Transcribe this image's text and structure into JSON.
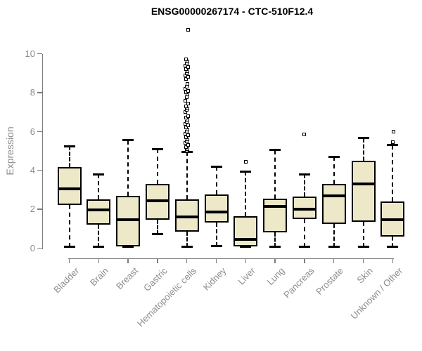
{
  "chart_data": {
    "type": "boxplot",
    "title": "ENSG00000267174 - CTC-510F12.4",
    "ylabel": "Expression",
    "xlabel": "",
    "ylim": [
      0,
      10
    ],
    "yticks": [
      0,
      2,
      4,
      6,
      8,
      10
    ],
    "grid": false,
    "legend": false,
    "categories": [
      "Bladder",
      "Brain",
      "Breast",
      "Gastric",
      "Hematopoietic cells",
      "Kidney",
      "Liver",
      "Lung",
      "Pancreas",
      "Prostate",
      "Skin",
      "Unknown / Other"
    ],
    "boxes": [
      {
        "category": "Bladder",
        "whisker_low": 0.05,
        "q1": 2.2,
        "median": 3.05,
        "q3": 4.15,
        "whisker_high": 5.25,
        "outliers": []
      },
      {
        "category": "Brain",
        "whisker_low": 0.05,
        "q1": 1.2,
        "median": 1.95,
        "q3": 2.5,
        "whisker_high": 3.8,
        "outliers": []
      },
      {
        "category": "Breast",
        "whisker_low": 0.05,
        "q1": 0.1,
        "median": 1.45,
        "q3": 2.7,
        "whisker_high": 5.55,
        "outliers": []
      },
      {
        "category": "Gastric",
        "whisker_low": 0.7,
        "q1": 1.45,
        "median": 2.45,
        "q3": 3.3,
        "whisker_high": 5.1,
        "outliers": []
      },
      {
        "category": "Hematopoietic cells",
        "whisker_low": 0.05,
        "q1": 0.85,
        "median": 1.6,
        "q3": 2.5,
        "whisker_high": 4.95,
        "outliers": [
          5.0,
          5.1,
          5.2,
          5.3,
          5.4,
          5.5,
          5.6,
          5.7,
          5.8,
          5.9,
          6.0,
          6.1,
          6.2,
          6.3,
          6.4,
          6.5,
          6.6,
          6.7,
          6.8,
          7.0,
          7.1,
          7.2,
          7.3,
          7.45,
          7.6,
          7.75,
          7.9,
          8.0,
          8.1,
          8.2,
          8.3,
          8.45,
          8.7,
          8.8,
          8.9,
          9.0,
          9.1,
          9.2,
          9.3,
          9.4,
          9.5,
          9.6,
          9.7,
          11.25
        ]
      },
      {
        "category": "Kidney",
        "whisker_low": 0.1,
        "q1": 1.3,
        "median": 1.85,
        "q3": 2.75,
        "whisker_high": 4.2,
        "outliers": []
      },
      {
        "category": "Liver",
        "whisker_low": 0.05,
        "q1": 0.1,
        "median": 0.45,
        "q3": 1.65,
        "whisker_high": 3.95,
        "outliers": [
          4.45
        ]
      },
      {
        "category": "Lung",
        "whisker_low": 0.05,
        "q1": 0.8,
        "median": 2.15,
        "q3": 2.55,
        "whisker_high": 5.05,
        "outliers": []
      },
      {
        "category": "Pancreas",
        "whisker_low": 0.05,
        "q1": 1.5,
        "median": 2.0,
        "q3": 2.65,
        "whisker_high": 3.8,
        "outliers": [
          5.85
        ]
      },
      {
        "category": "Prostate",
        "whisker_low": 0.05,
        "q1": 1.25,
        "median": 2.7,
        "q3": 3.3,
        "whisker_high": 4.7,
        "outliers": []
      },
      {
        "category": "Skin",
        "whisker_low": 0.05,
        "q1": 1.35,
        "median": 3.3,
        "q3": 4.5,
        "whisker_high": 5.65,
        "outliers": []
      },
      {
        "category": "Unknown / Other",
        "whisker_low": 0.05,
        "q1": 0.6,
        "median": 1.45,
        "q3": 2.4,
        "whisker_high": 5.3,
        "outliers": [
          5.45,
          6.0
        ]
      }
    ],
    "colors": {
      "box_fill": "#EDE8C8",
      "box_border": "#000000",
      "median": "#000000",
      "whisker": "#000000",
      "axis": "#7D7D7D",
      "tick_text": "#8C8C8C",
      "title_text": "#000000",
      "background": "#FFFFFF"
    }
  }
}
